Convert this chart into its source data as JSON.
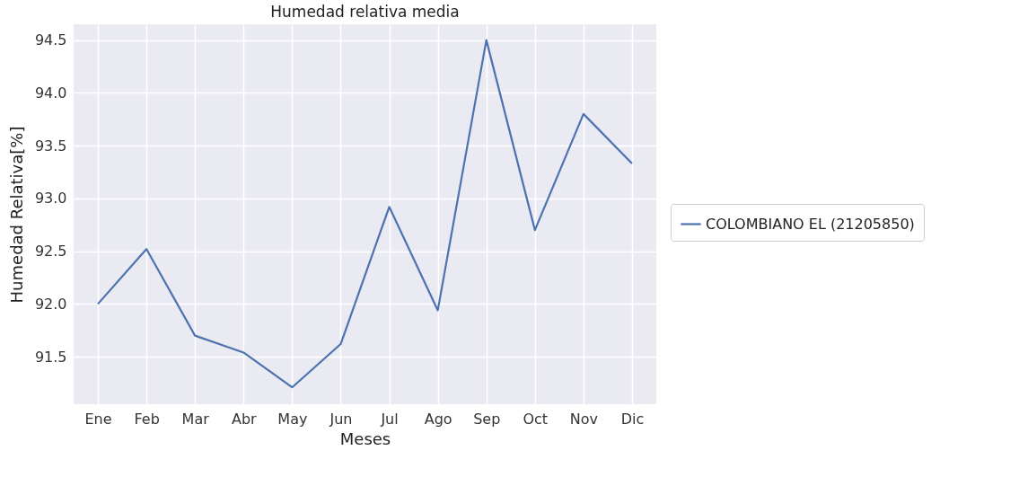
{
  "chart_data": {
    "type": "line",
    "title": "Humedad relativa media",
    "xlabel": "Meses",
    "ylabel": "Humedad Relativa[%]",
    "categories": [
      "Ene",
      "Feb",
      "Mar",
      "Abr",
      "May",
      "Jun",
      "Jul",
      "Ago",
      "Sep",
      "Oct",
      "Nov",
      "Dic"
    ],
    "series": [
      {
        "name": "COLOMBIANO EL (21205850)",
        "color": "#4c72b0",
        "values": [
          92.0,
          92.52,
          91.7,
          91.54,
          91.21,
          91.62,
          92.92,
          91.94,
          94.5,
          92.7,
          93.8,
          93.33
        ]
      }
    ],
    "ylim": [
      91.05,
      94.65
    ],
    "yticks": [
      {
        "value": 91.5,
        "label": "91.5"
      },
      {
        "value": 92,
        "label": "92.0"
      },
      {
        "value": 92.5,
        "label": "92.5"
      },
      {
        "value": 93,
        "label": "93.0"
      },
      {
        "value": 93.5,
        "label": "93.5"
      },
      {
        "value": 94,
        "label": "94.0"
      },
      {
        "value": 94.5,
        "label": "94.5"
      }
    ],
    "grid": true,
    "legend": "right",
    "line_style": "solid",
    "marker": "none"
  }
}
